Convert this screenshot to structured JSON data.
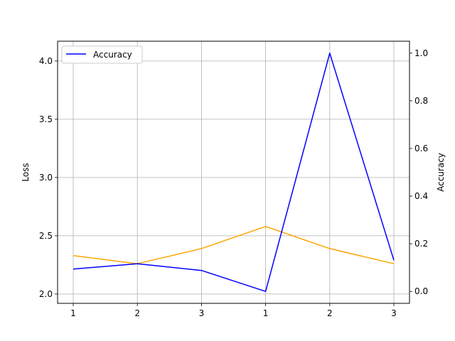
{
  "chart_data": {
    "type": "line",
    "x_tick_labels": [
      "1",
      "2",
      "3",
      "1",
      "2",
      "3"
    ],
    "ylabel_left": "Loss",
    "ylabel_right": "Accuracy",
    "ylim_left": [
      1.92,
      4.17
    ],
    "ylim_right": [
      -0.05,
      1.05
    ],
    "yticks_left": [
      "2.0",
      "2.5",
      "3.0",
      "3.5",
      "4.0"
    ],
    "yticks_right": [
      "0.0",
      "0.2",
      "0.4",
      "0.6",
      "0.8",
      "1.0"
    ],
    "grid": true,
    "legend": {
      "position": "top-left",
      "entries": [
        "Accuracy"
      ]
    },
    "series": [
      {
        "axis": "left",
        "color": "#FFA500",
        "values": [
          2.33,
          2.26,
          2.39,
          2.58,
          2.39,
          2.26
        ]
      },
      {
        "name": "Accuracy",
        "axis": "right",
        "color": "#0000FF",
        "values": [
          0.094,
          0.116,
          0.088,
          0.0,
          1.0,
          0.131
        ]
      }
    ]
  }
}
